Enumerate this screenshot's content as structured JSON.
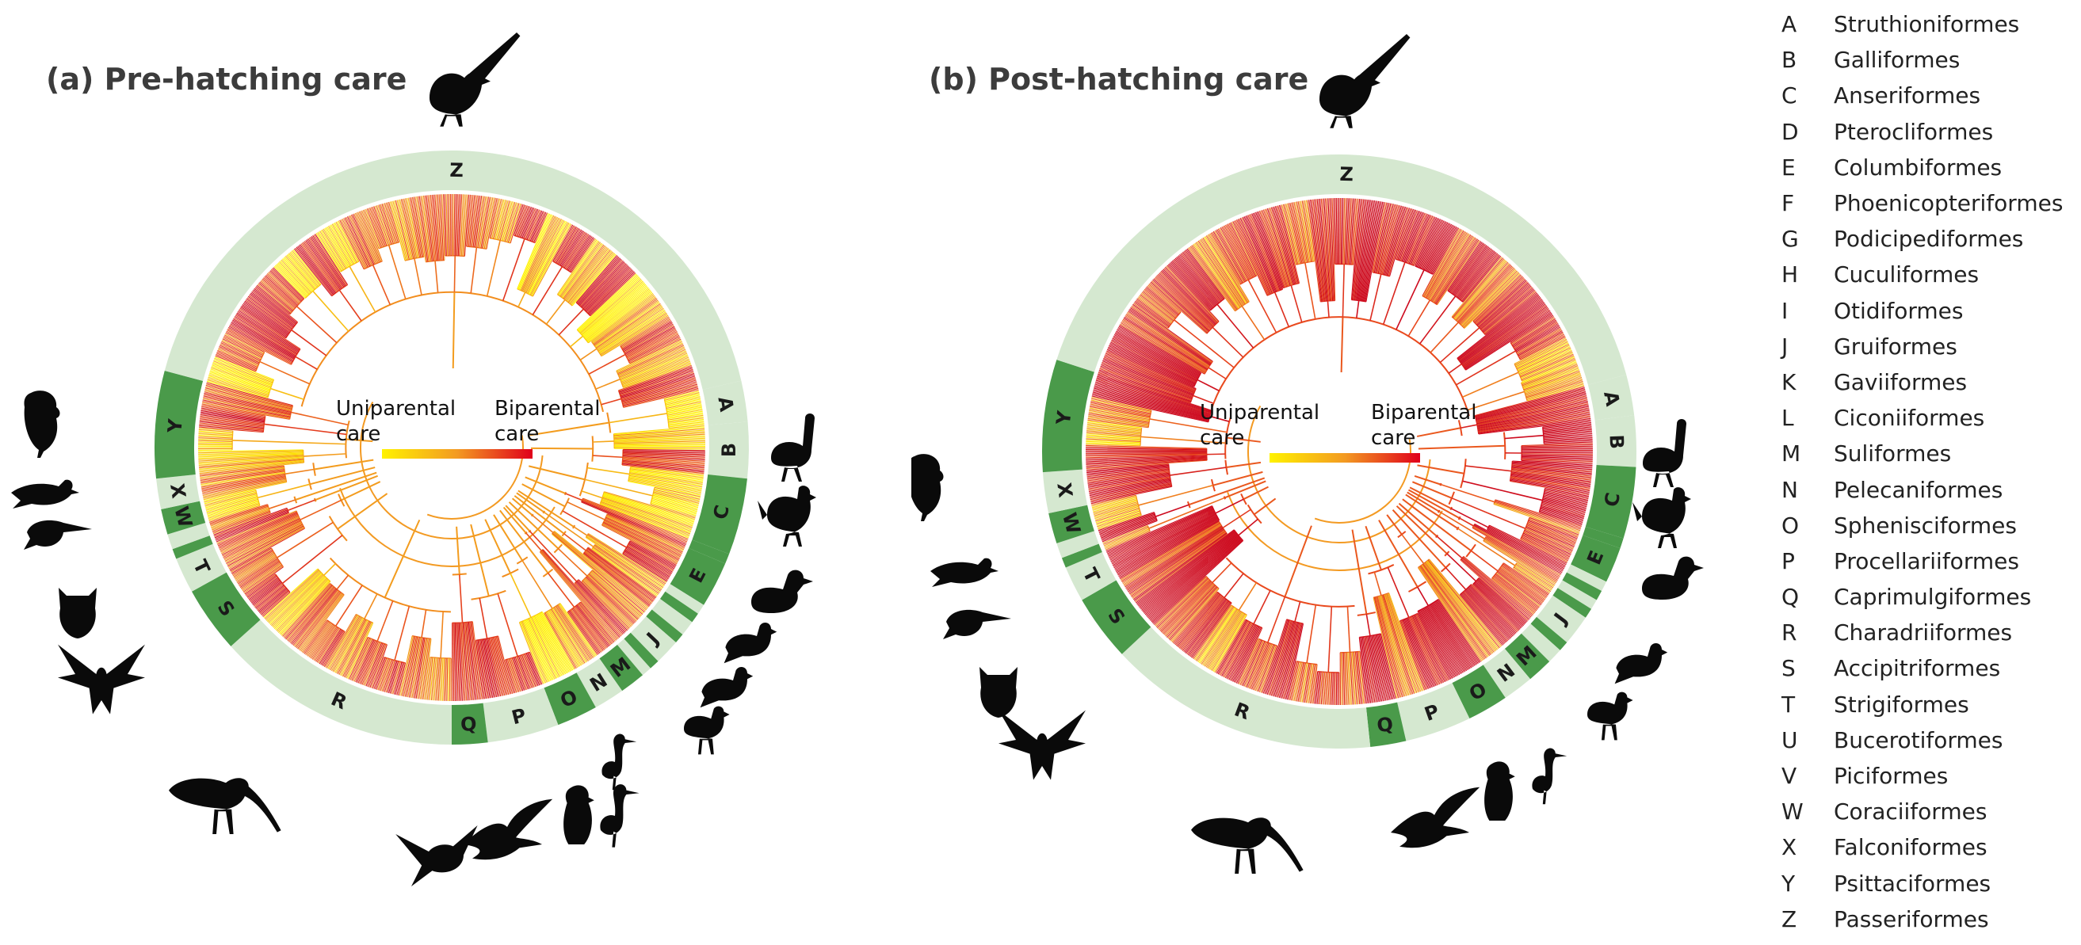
{
  "panels": [
    {
      "id": "a",
      "title": "(a) Pre-hatching care",
      "uniparental_label": "Uniparental\ncare",
      "biparental_label": "Biparental\ncare",
      "care_tone": "yellow"
    },
    {
      "id": "b",
      "title": "(b) Post-hatching care",
      "uniparental_label": "Uniparental\ncare",
      "biparental_label": "Biparental\ncare",
      "care_tone": "orange"
    }
  ],
  "colors": {
    "ring_light": "#d5e8d0",
    "ring_dark": "#4a9a4a",
    "uniparental": "#fff200",
    "biparental": "#e0001b",
    "branch_mid": "#f39a22"
  },
  "orders": [
    {
      "letter": "A",
      "name": "Struthioniformes",
      "shade": "light"
    },
    {
      "letter": "B",
      "name": "Galliformes",
      "shade": "light"
    },
    {
      "letter": "C",
      "name": "Anseriformes",
      "shade": "dark"
    },
    {
      "letter": "D",
      "name": "Pterocliformes",
      "shade": "dark"
    },
    {
      "letter": "E",
      "name": "Columbiformes",
      "shade": "dark"
    },
    {
      "letter": "F",
      "name": "Phoenicopteriformes",
      "shade": "light"
    },
    {
      "letter": "G",
      "name": "Podicipediformes",
      "shade": "dark"
    },
    {
      "letter": "H",
      "name": "Cuculiformes",
      "shade": "light"
    },
    {
      "letter": "I",
      "name": "Otidiformes",
      "shade": "dark"
    },
    {
      "letter": "J",
      "name": "Gruiformes",
      "shade": "light"
    },
    {
      "letter": "K",
      "name": "Gaviiformes",
      "shade": "dark"
    },
    {
      "letter": "L",
      "name": "Ciconiiformes",
      "shade": "light"
    },
    {
      "letter": "M",
      "name": "Suliformes",
      "shade": "dark"
    },
    {
      "letter": "N",
      "name": "Pelecaniformes",
      "shade": "light"
    },
    {
      "letter": "O",
      "name": "Sphenisciformes",
      "shade": "dark"
    },
    {
      "letter": "P",
      "name": "Procellariiformes",
      "shade": "light"
    },
    {
      "letter": "Q",
      "name": "Caprimulgiformes",
      "shade": "dark"
    },
    {
      "letter": "R",
      "name": "Charadriiformes",
      "shade": "light"
    },
    {
      "letter": "S",
      "name": "Accipitriformes",
      "shade": "dark"
    },
    {
      "letter": "T",
      "name": "Strigiformes",
      "shade": "light"
    },
    {
      "letter": "U",
      "name": "Bucerotiformes",
      "shade": "dark"
    },
    {
      "letter": "V",
      "name": "Piciformes",
      "shade": "light"
    },
    {
      "letter": "W",
      "name": "Coraciiformes",
      "shade": "dark"
    },
    {
      "letter": "X",
      "name": "Falconiformes",
      "shade": "light"
    },
    {
      "letter": "Y",
      "name": "Psittaciformes",
      "shade": "dark"
    },
    {
      "letter": "Z",
      "name": "Passeriformes",
      "shade": "light"
    }
  ],
  "ring_segments": {
    "a": [
      {
        "letter": "A",
        "start": 77,
        "end": 85
      },
      {
        "letter": "B",
        "start": 85,
        "end": 96
      },
      {
        "letter": "C",
        "start": 96,
        "end": 111
      },
      {
        "letter": "D",
        "start": 111,
        "end": 113
      },
      {
        "letter": "E",
        "start": 113,
        "end": 122
      },
      {
        "letter": "F",
        "start": 122,
        "end": 124
      },
      {
        "letter": "G",
        "start": 124,
        "end": 126
      },
      {
        "letter": "H",
        "start": 126,
        "end": 129
      },
      {
        "letter": "I",
        "start": 129,
        "end": 131
      },
      {
        "letter": "J",
        "start": 131,
        "end": 136
      },
      {
        "letter": "K",
        "start": 136,
        "end": 138
      },
      {
        "letter": "L",
        "start": 138,
        "end": 140
      },
      {
        "letter": "M",
        "start": 140,
        "end": 145
      },
      {
        "letter": "N",
        "start": 145,
        "end": 151
      },
      {
        "letter": "O",
        "start": 151,
        "end": 159
      },
      {
        "letter": "P",
        "start": 159,
        "end": 173
      },
      {
        "letter": "Q",
        "start": 173,
        "end": 180
      },
      {
        "letter": "R",
        "start": 180,
        "end": 228
      },
      {
        "letter": "S",
        "start": 228,
        "end": 241
      },
      {
        "letter": "T",
        "start": 241,
        "end": 248
      },
      {
        "letter": "U",
        "start": 248,
        "end": 250
      },
      {
        "letter": "V",
        "start": 250,
        "end": 253
      },
      {
        "letter": "W",
        "start": 253,
        "end": 258
      },
      {
        "letter": "X",
        "start": 258,
        "end": 264
      },
      {
        "letter": "Y",
        "start": 264,
        "end": 285
      },
      {
        "letter": "Z",
        "start": 285,
        "end": 437
      }
    ],
    "b": [
      {
        "letter": "A",
        "start": 75,
        "end": 83
      },
      {
        "letter": "B",
        "start": 83,
        "end": 93
      },
      {
        "letter": "C",
        "start": 93,
        "end": 107
      },
      {
        "letter": "D",
        "start": 107,
        "end": 109
      },
      {
        "letter": "E",
        "start": 109,
        "end": 116
      },
      {
        "letter": "F",
        "start": 116,
        "end": 118
      },
      {
        "letter": "G",
        "start": 118,
        "end": 120
      },
      {
        "letter": "H",
        "start": 120,
        "end": 122
      },
      {
        "letter": "I",
        "start": 122,
        "end": 124
      },
      {
        "letter": "J",
        "start": 124,
        "end": 130
      },
      {
        "letter": "K",
        "start": 130,
        "end": 132
      },
      {
        "letter": "L",
        "start": 132,
        "end": 135
      },
      {
        "letter": "M",
        "start": 135,
        "end": 140
      },
      {
        "letter": "N",
        "start": 140,
        "end": 146
      },
      {
        "letter": "O",
        "start": 146,
        "end": 154
      },
      {
        "letter": "P",
        "start": 154,
        "end": 167
      },
      {
        "letter": "Q",
        "start": 167,
        "end": 174
      },
      {
        "letter": "R",
        "start": 174,
        "end": 227
      },
      {
        "letter": "S",
        "start": 227,
        "end": 240
      },
      {
        "letter": "T",
        "start": 240,
        "end": 247
      },
      {
        "letter": "U",
        "start": 247,
        "end": 249
      },
      {
        "letter": "V",
        "start": 249,
        "end": 252
      },
      {
        "letter": "W",
        "start": 252,
        "end": 258
      },
      {
        "letter": "X",
        "start": 258,
        "end": 266
      },
      {
        "letter": "Y",
        "start": 266,
        "end": 288
      },
      {
        "letter": "Z",
        "start": 288,
        "end": 435
      }
    ]
  },
  "silhouettes": [
    "wren-icon",
    "ostrich-icon",
    "chicken-icon",
    "duck-icon",
    "pigeon-icon",
    "moorhen-icon",
    "penguin-icon",
    "heron-icon",
    "petrel-icon",
    "nightjar-icon",
    "curlew-icon",
    "eagle-icon",
    "owl-icon",
    "kingfisher-icon",
    "falcon-icon",
    "parrot-icon"
  ]
}
